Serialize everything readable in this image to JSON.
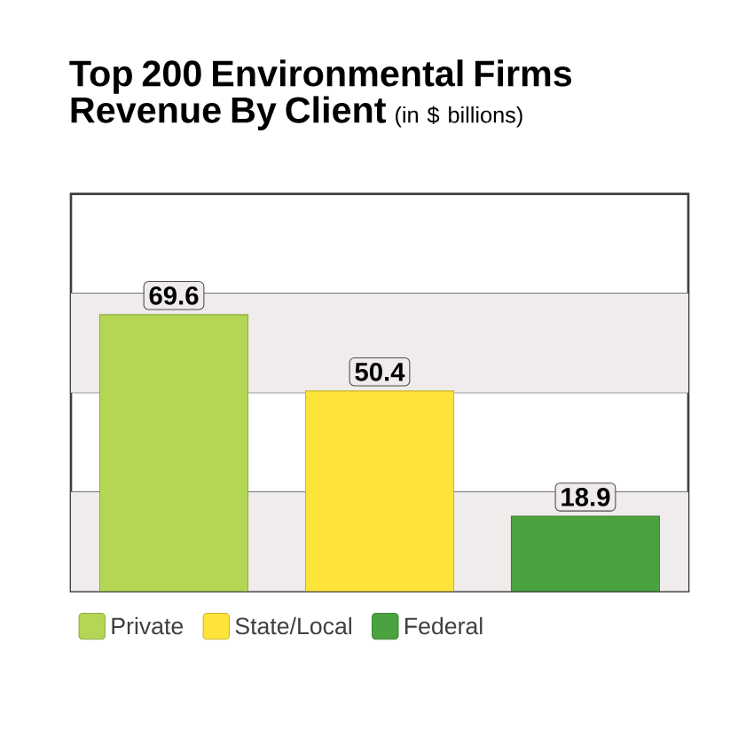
{
  "chart_data": {
    "type": "bar",
    "title": "Top 200 Environmental Firms Revenue By Client",
    "subtitle": "(in $ billions)",
    "categories": [
      null
    ],
    "series": [
      {
        "name": "Private",
        "color": "#b4d655",
        "values": [
          69.6
        ]
      },
      {
        "name": "State/Local",
        "color": "#fee43a",
        "values": [
          50.4
        ]
      },
      {
        "name": "Federal",
        "color": "#4aa33f",
        "values": [
          18.9
        ]
      }
    ],
    "ylim": [
      0,
      100
    ],
    "yticks": [
      {
        "value": 0,
        "label": null
      },
      {
        "value": 25,
        "label": null
      },
      {
        "value": 50,
        "label": null
      },
      {
        "value": 75,
        "label": null
      },
      {
        "value": 100,
        "label": null
      }
    ],
    "grid": "y",
    "legend": "bottom",
    "data_labels": true
  }
}
